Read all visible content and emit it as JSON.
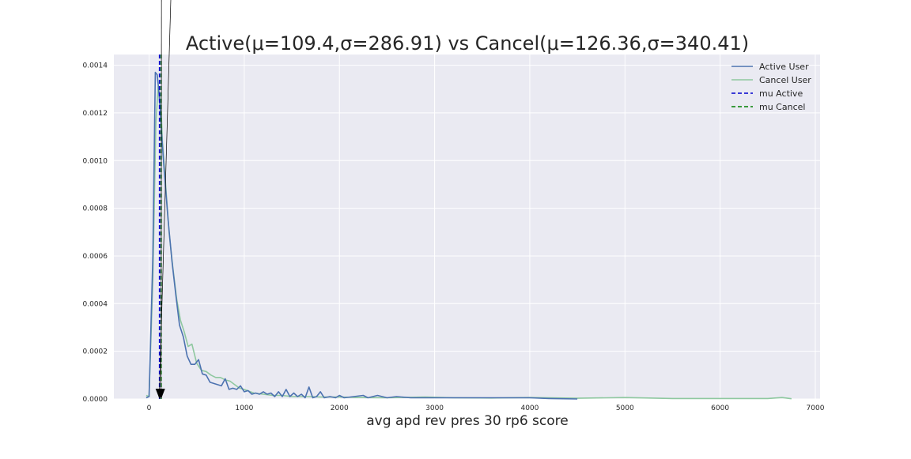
{
  "chart_data": {
    "type": "line",
    "title": "Active(μ=109.4,σ=286.91) vs Cancel(μ=126.36,σ=340.41)",
    "xlabel": "avg apd rev pres 30 rp6 score",
    "ylabel": "",
    "xlim": [
      -370,
      7050
    ],
    "ylim": [
      0,
      0.001445
    ],
    "xticks": [
      "0",
      "1000",
      "2000",
      "3000",
      "4000",
      "5000",
      "6000",
      "7000"
    ],
    "yticks": [
      "0.0000",
      "0.0002",
      "0.0004",
      "0.0006",
      "0.0008",
      "0.0010",
      "0.0012",
      "0.0014"
    ],
    "grid": true,
    "legend": "top-right",
    "series": [
      {
        "name": "Active User",
        "color": "#4c72b0",
        "x": [
          -30,
          0,
          40,
          65,
          85,
          100,
          115,
          130,
          160,
          200,
          240,
          280,
          320,
          360,
          400,
          440,
          480,
          520,
          560,
          600,
          640,
          680,
          720,
          760,
          800,
          840,
          880,
          920,
          960,
          1000,
          1040,
          1080,
          1120,
          1160,
          1200,
          1240,
          1280,
          1320,
          1360,
          1400,
          1440,
          1480,
          1520,
          1560,
          1600,
          1640,
          1680,
          1720,
          1760,
          1800,
          1840,
          1900,
          1960,
          2000,
          2050,
          2150,
          2250,
          2300,
          2400,
          2500,
          2600,
          2750,
          2900,
          3100,
          3300,
          3500,
          3700,
          3900,
          4000,
          4200,
          4500
        ],
        "y": [
          5e-06,
          1e-05,
          0.0006,
          0.00137,
          0.00136,
          0.0013,
          0.00122,
          0.00112,
          0.00095,
          0.00075,
          0.00058,
          0.00044,
          0.00031,
          0.00026,
          0.00018,
          0.000145,
          0.000145,
          0.000165,
          0.000105,
          0.0001,
          7e-05,
          6.5e-05,
          6e-05,
          5.5e-05,
          8.5e-05,
          4e-05,
          4.5e-05,
          4e-05,
          5.5e-05,
          3e-05,
          3.5e-05,
          2e-05,
          2.5e-05,
          2e-05,
          3e-05,
          2e-05,
          2.5e-05,
          1e-05,
          3e-05,
          1e-05,
          4e-05,
          1e-05,
          2.5e-05,
          1e-05,
          2e-05,
          5e-06,
          5e-05,
          5e-06,
          1e-05,
          3e-05,
          5e-06,
          1e-05,
          5e-06,
          1.5e-05,
          5e-06,
          1e-05,
          1.5e-05,
          5e-06,
          1.5e-05,
          5e-06,
          1e-05,
          5e-06,
          5e-06,
          5e-06,
          5e-06,
          5e-06,
          5e-06,
          5e-06,
          5e-06,
          2e-06,
          0.0
        ]
      },
      {
        "name": "Cancel User",
        "color": "#8fc8a0",
        "x": [
          -30,
          0,
          40,
          70,
          95,
          110,
          125,
          140,
          170,
          210,
          250,
          290,
          330,
          370,
          410,
          450,
          500,
          550,
          600,
          650,
          700,
          750,
          800,
          850,
          900,
          950,
          1000,
          1100,
          1200,
          1300,
          1400,
          1500,
          1600,
          1700,
          1800,
          1900,
          2000,
          2200,
          2500,
          2900,
          3200,
          3600,
          4000,
          4500,
          5000,
          5500,
          6000,
          6500,
          6650,
          6750
        ],
        "y": [
          1.5e-05,
          1e-05,
          0.0005,
          0.00115,
          0.00131,
          0.00128,
          0.00122,
          0.00108,
          0.00092,
          0.0007,
          0.00055,
          0.00042,
          0.00033,
          0.00028,
          0.00022,
          0.00023,
          0.00015,
          0.00012,
          0.000115,
          0.0001,
          9e-05,
          9e-05,
          8e-05,
          7.5e-05,
          6e-05,
          4.5e-05,
          4e-05,
          2.5e-05,
          2e-05,
          1.5e-05,
          1.5e-05,
          1e-05,
          1e-05,
          1e-05,
          8e-06,
          8e-06,
          8e-06,
          6e-06,
          5e-06,
          8e-06,
          5e-06,
          4e-06,
          6e-06,
          3e-06,
          6e-06,
          2e-06,
          2e-06,
          2e-06,
          6e-06,
          1e-06
        ]
      }
    ],
    "mean_lines": [
      {
        "name": "mu Active",
        "x": 109.4,
        "color": "#0000cc",
        "dash": "dashed"
      },
      {
        "name": "mu Cancel",
        "x": 126.36,
        "color": "#008000",
        "dash": "dashed"
      }
    ],
    "annotation_arrows": [
      {
        "from": [
          230,
          0.0017
        ],
        "to": [
          109.4,
          0.0
        ]
      },
      {
        "from": [
          130,
          0.0017
        ],
        "to": [
          126.36,
          0.0
        ]
      }
    ],
    "legend_entries": [
      {
        "label": "Active User",
        "color": "#4c72b0",
        "style": "solid"
      },
      {
        "label": "Cancel User",
        "color": "#8fc8a0",
        "style": "solid"
      },
      {
        "label": "mu Active",
        "color": "#0000cc",
        "style": "dashed"
      },
      {
        "label": "mu Cancel",
        "color": "#008000",
        "style": "dashed"
      }
    ],
    "colors": {
      "background": "#eaeaf2",
      "grid": "#ffffff"
    }
  }
}
